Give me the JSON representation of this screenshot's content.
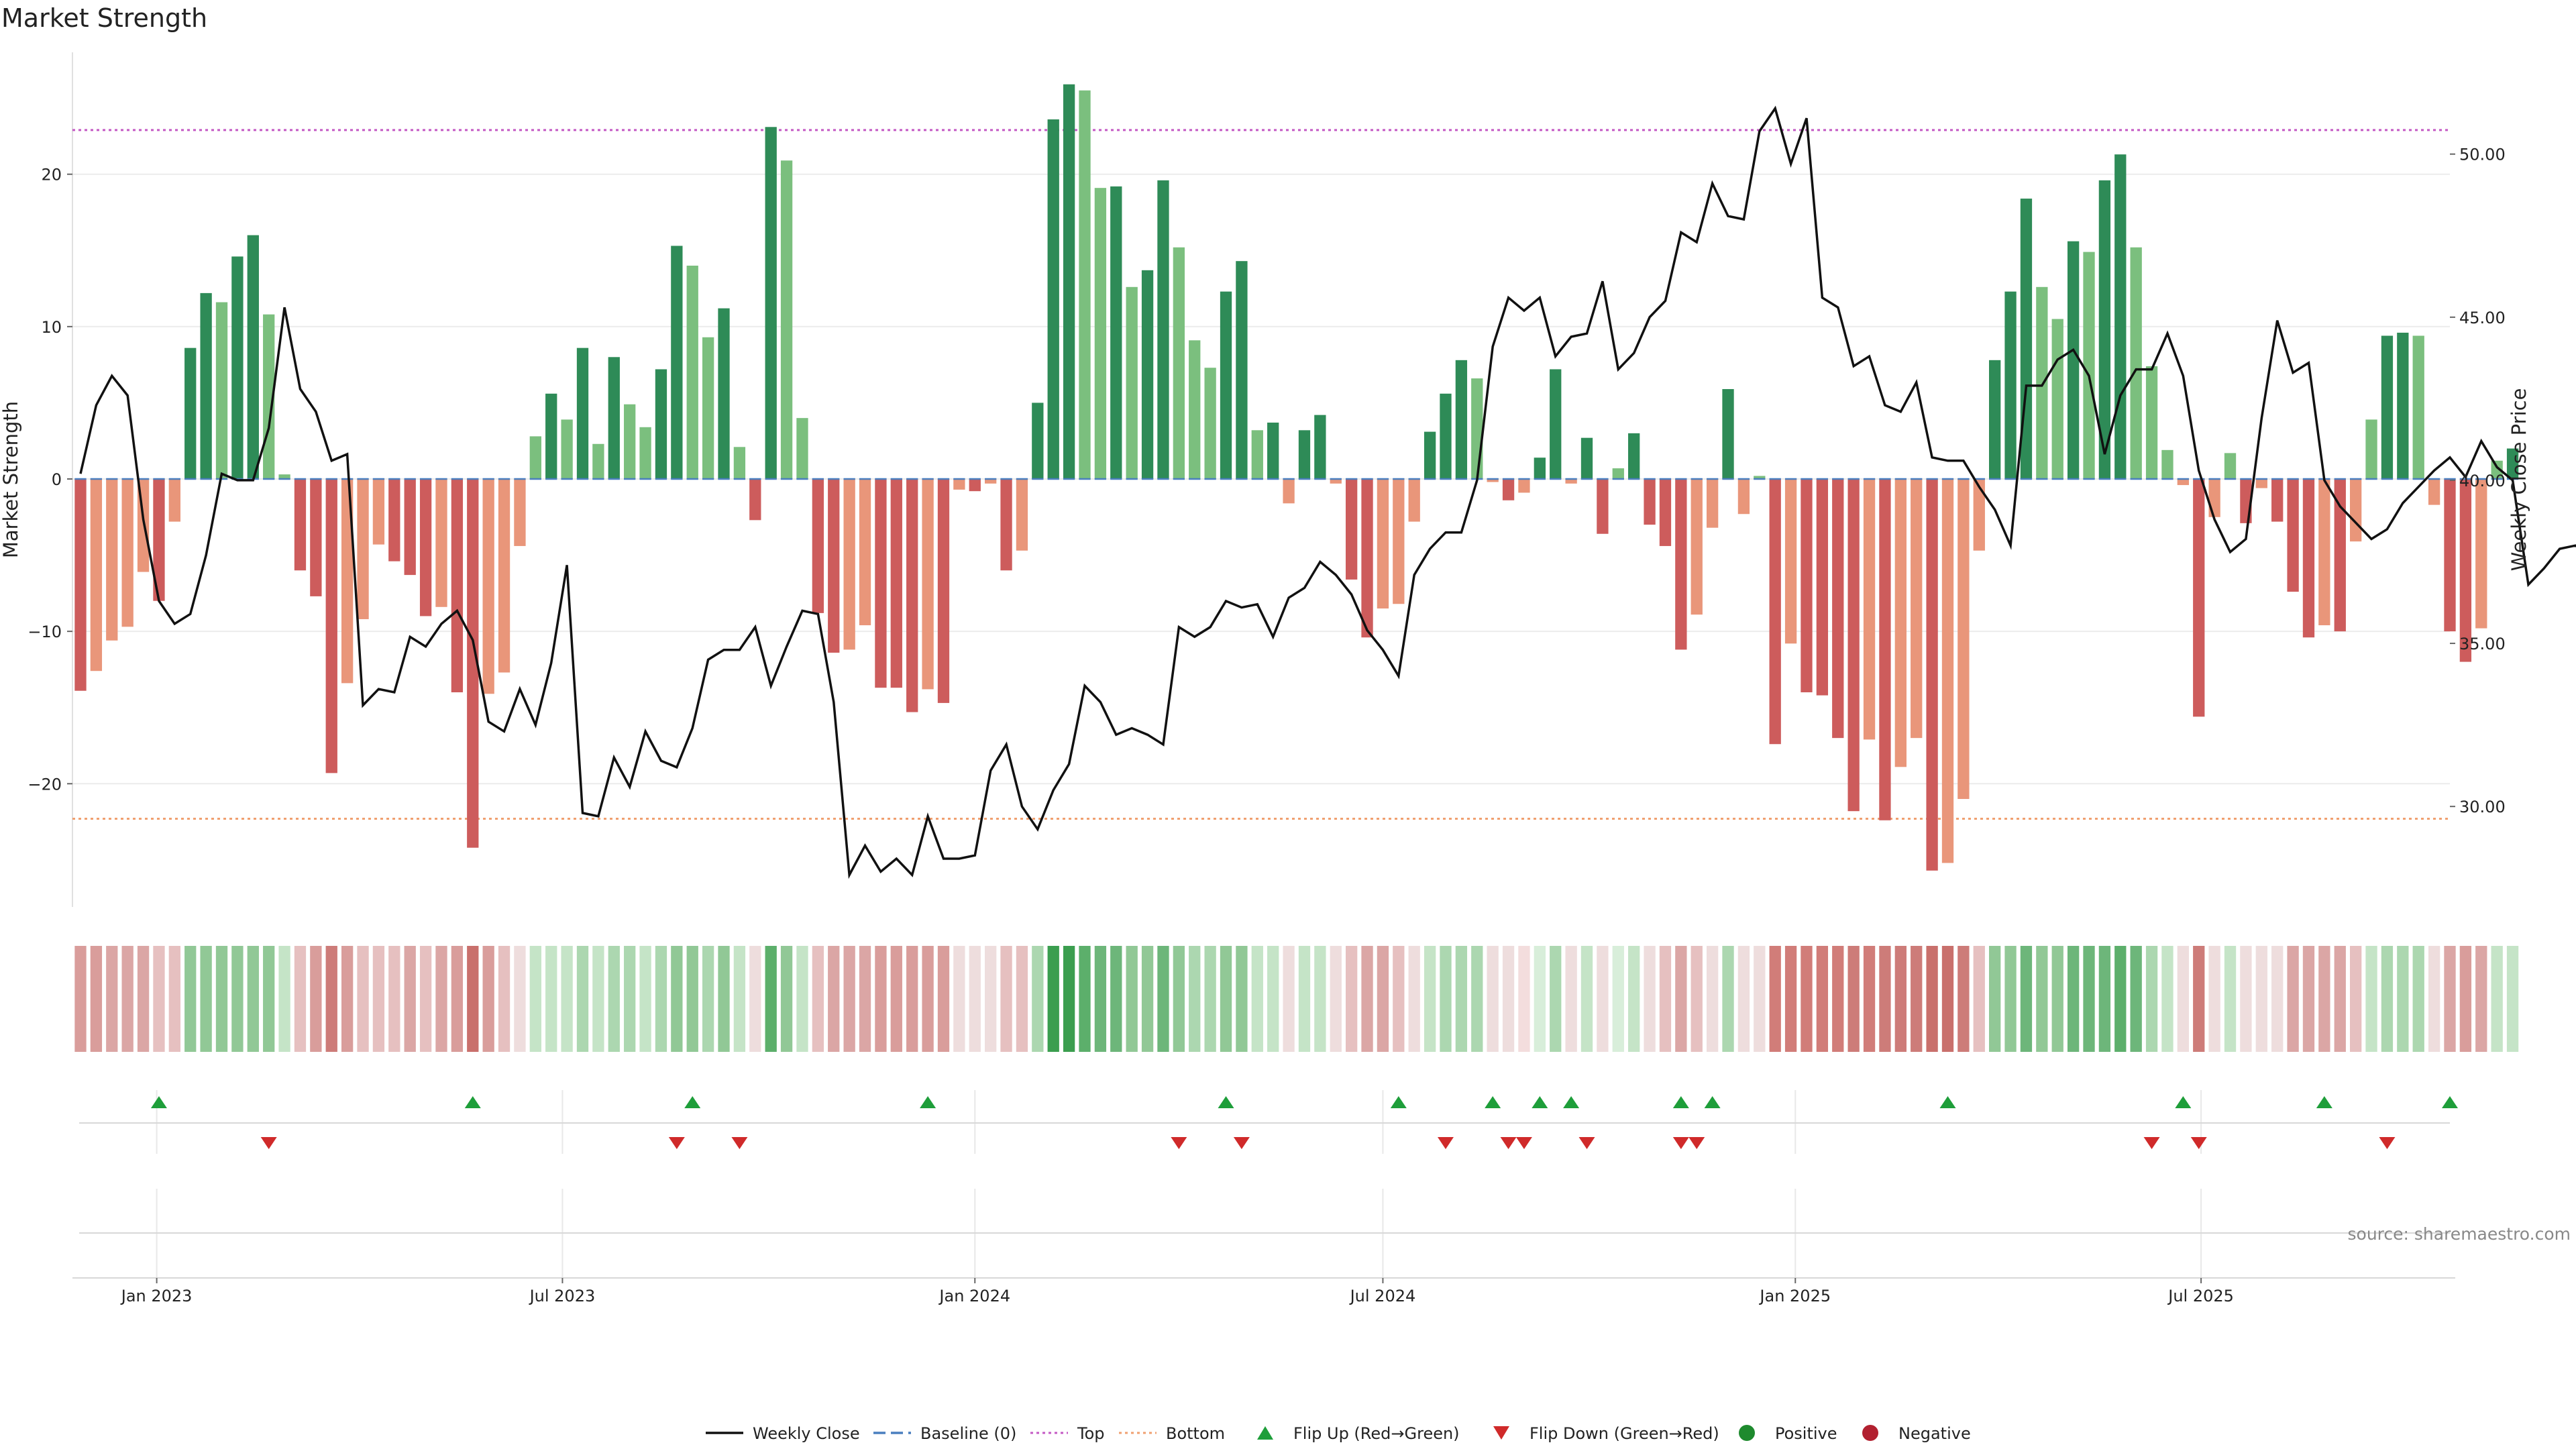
{
  "chart_data": {
    "type": "bar",
    "title": "Market Strength",
    "ylabel_left": "Market Strength",
    "ylabel_right": "Weekly Close Price",
    "source": "source: sharemaestro.com",
    "ylim_left": [
      -28,
      28
    ],
    "ylim_right": [
      26.96,
      53.12
    ],
    "yticks_left": [
      "20",
      "10",
      "0",
      "−10",
      "−20"
    ],
    "yticks_left_values": [
      20,
      10,
      0,
      -10,
      -20
    ],
    "yticks_right": [
      "50.00",
      "45.00",
      "40.00",
      "35.00",
      "30.00"
    ],
    "yticks_right_values": [
      50,
      45,
      40,
      35,
      30
    ],
    "x_start": "2022-11-28",
    "x_end": "2025-10-20",
    "x_ticks": [
      {
        "date": "2023-01-01",
        "label": "Jan 2023"
      },
      {
        "date": "2023-07-01",
        "label": "Jul 2023"
      },
      {
        "date": "2024-01-01",
        "label": "Jan 2024"
      },
      {
        "date": "2024-07-01",
        "label": "Jul 2024"
      },
      {
        "date": "2025-01-01",
        "label": "Jan 2025"
      },
      {
        "date": "2025-07-01",
        "label": "Jul 2025"
      }
    ],
    "reference_lines": {
      "top": 22.9,
      "bottom": -22.3,
      "baseline": 0
    },
    "market_strength": [
      -13.9,
      -12.6,
      -10.6,
      -9.7,
      -6.1,
      -8,
      -2.8,
      8.6,
      12.2,
      11.6,
      14.6,
      16,
      10.8,
      0.3,
      -6,
      -7.7,
      -19.3,
      -13.4,
      -9.2,
      -4.3,
      -5.4,
      -6.3,
      -9,
      -8.4,
      -14,
      -24.2,
      -14.1,
      -12.7,
      -4.4,
      2.8,
      5.6,
      3.9,
      8.6,
      2.3,
      8,
      4.9,
      3.4,
      7.2,
      15.3,
      14,
      9.3,
      11.2,
      2.1,
      -2.7,
      23.1,
      20.9,
      4,
      -8.8,
      -11.4,
      -11.2,
      -9.6,
      -13.7,
      -13.7,
      -15.3,
      -13.8,
      -14.7,
      -0.7,
      -0.8,
      -0.3,
      -6,
      -4.7,
      5,
      23.6,
      25.9,
      25.5,
      19.1,
      19.2,
      12.6,
      13.7,
      19.6,
      15.2,
      9.1,
      7.3,
      12.3,
      14.3,
      3.2,
      3.7,
      -1.6,
      3.2,
      4.2,
      -0.3,
      -6.6,
      -10.4,
      -8.5,
      -8.2,
      -2.8,
      3.1,
      5.6,
      7.8,
      6.6,
      -0.2,
      -1.4,
      -0.9,
      1.4,
      7.2,
      -0.3,
      2.7,
      -3.6,
      0.7,
      3,
      -3,
      -4.4,
      -11.2,
      -8.9,
      -3.2,
      5.9,
      -2.3,
      0.2,
      -17.4,
      -10.8,
      -14,
      -14.2,
      -17,
      -21.8,
      -17.1,
      -22.4,
      -18.9,
      -17,
      -25.7,
      -25.2,
      -21,
      -4.7,
      7.8,
      12.3,
      18.4,
      12.6,
      10.5,
      15.6,
      14.9,
      19.6,
      21.3,
      15.2,
      7.4,
      1.9,
      -0.4,
      -15.6,
      -2.5,
      1.7,
      -2.9,
      -0.6,
      -2.8,
      -7.4,
      -10.4,
      -9.6,
      -10,
      -4.1,
      3.9,
      9.4,
      9.6,
      9.4,
      -1.7,
      -10,
      -12,
      -9.8,
      1.2,
      2
    ],
    "weekly_close": [
      40.2,
      42.3,
      43.2,
      42.6,
      38.8,
      36.3,
      35.6,
      35.9,
      37.7,
      40.2,
      40,
      40,
      41.6,
      45.3,
      42.8,
      42.1,
      40.6,
      40.8,
      33.1,
      33.6,
      33.5,
      35.2,
      34.9,
      35.6,
      36,
      35.1,
      32.6,
      32.3,
      33.6,
      32.5,
      34.4,
      37.4,
      29.8,
      29.7,
      31.5,
      30.6,
      32.3,
      31.4,
      31.2,
      32.4,
      34.5,
      34.8,
      34.8,
      35.5,
      33.7,
      34.9,
      36,
      35.9,
      33.2,
      27.9,
      28.8,
      28,
      28.4,
      27.9,
      29.7,
      28.4,
      28.4,
      28.5,
      31.1,
      31.9,
      30,
      29.3,
      30.5,
      31.3,
      33.7,
      33.2,
      32.2,
      32.4,
      32.2,
      31.9,
      35.5,
      35.2,
      35.5,
      36.3,
      36.1,
      36.2,
      35.2,
      36.4,
      36.7,
      37.5,
      37.1,
      36.5,
      35.4,
      34.8,
      34,
      37.1,
      37.9,
      38.4,
      38.4,
      40,
      44.1,
      45.6,
      45.2,
      45.6,
      43.8,
      44.4,
      44.5,
      46.1,
      43.4,
      43.9,
      45,
      45.5,
      47.6,
      47.3,
      49.1,
      48.1,
      48,
      50.7,
      51.4,
      49.7,
      51.1,
      45.6,
      45.3,
      43.5,
      43.8,
      42.3,
      42.1,
      43,
      40.7,
      40.6,
      40.6,
      39.8,
      39.1,
      38,
      42.9,
      42.9,
      43.7,
      44,
      43.2,
      40.8,
      42.6,
      43.4,
      43.4,
      44.5,
      43.2,
      40.3,
      38.8,
      37.8,
      38.2,
      41.9,
      44.9,
      43.3,
      43.6,
      40,
      39.2,
      38.7,
      38.2,
      38.5,
      39.3,
      39.8,
      40.3,
      40.7,
      40.1,
      41.2,
      40.4,
      40,
      36.8,
      37.3,
      37.9,
      38,
      37.7
    ],
    "band_colors": [
      "#d99d9b",
      "#d99d9b",
      "#dba6a5",
      "#dba6a5",
      "#dba6a5",
      "#e6c0c0",
      "#e6c0c0",
      "#91c896",
      "#91c896",
      "#91c896",
      "#91c896",
      "#91c896",
      "#91c896",
      "#c5e4c7",
      "#e6c0c0",
      "#d99d9b",
      "#cd7c79",
      "#d99d9b",
      "#e6c0c0",
      "#e6c0c0",
      "#e6c0c0",
      "#dba6a5",
      "#e6c0c0",
      "#dba6a5",
      "#d99d9b",
      "#c9706c",
      "#d99d9b",
      "#e6c0c0",
      "#eedddd",
      "#c5e4c7",
      "#c5e4c7",
      "#c5e4c7",
      "#acd7b0",
      "#c5e4c7",
      "#acd7b0",
      "#acd7b0",
      "#c5e4c7",
      "#acd7b0",
      "#91c896",
      "#91c896",
      "#acd7b0",
      "#91c896",
      "#c5e4c7",
      "#eedddd",
      "#5caf6b",
      "#91c896",
      "#c5e4c7",
      "#e6c0c0",
      "#dba6a5",
      "#dba6a5",
      "#dba6a5",
      "#d99d9b",
      "#d99d9b",
      "#d99d9b",
      "#d99d9b",
      "#d99d9b",
      "#eedddd",
      "#eedddd",
      "#eedddd",
      "#e6c0c0",
      "#e6c0c0",
      "#acd7b0",
      "#3b9e4f",
      "#3b9e4f",
      "#5caf6b",
      "#6db67a",
      "#6db67a",
      "#91c896",
      "#91c896",
      "#6db67a",
      "#91c896",
      "#acd7b0",
      "#acd7b0",
      "#91c896",
      "#91c896",
      "#c5e4c7",
      "#c5e4c7",
      "#eedddd",
      "#c5e4c7",
      "#c5e4c7",
      "#eedddd",
      "#e6c0c0",
      "#dba6a5",
      "#dba6a5",
      "#e6c0c0",
      "#eedddd",
      "#c5e4c7",
      "#acd7b0",
      "#acd7b0",
      "#acd7b0",
      "#eedddd",
      "#eedddd",
      "#f3dddd",
      "#d8eeda",
      "#acd7b0",
      "#eedddd",
      "#c5e4c7",
      "#eedddd",
      "#d8eeda",
      "#c5e4c7",
      "#eedddd",
      "#e6c0c0",
      "#dba6a5",
      "#e6c0c0",
      "#eedddd",
      "#acd7b0",
      "#eedddd",
      "#eedddd",
      "#d17d79",
      "#d17d79",
      "#d17d79",
      "#d17d79",
      "#d17d79",
      "#cd7c79",
      "#d17d79",
      "#cd7c79",
      "#cd7c79",
      "#cd7c79",
      "#c9706c",
      "#c9706c",
      "#cd7c79",
      "#e6c0c0",
      "#91c896",
      "#91c896",
      "#6db67a",
      "#91c896",
      "#91c896",
      "#6db67a",
      "#6db67a",
      "#6db67a",
      "#5caf6b",
      "#6db67a",
      "#acd7b0",
      "#c5e4c7",
      "#eedddd",
      "#cd7c79",
      "#eedddd",
      "#c5e4c7",
      "#eedddd",
      "#eedddd",
      "#eedddd",
      "#dba6a5",
      "#dba6a5",
      "#dba6a5",
      "#dba6a5",
      "#e6c0c0",
      "#c5e4c7",
      "#acd7b0",
      "#acd7b0",
      "#acd7b0",
      "#eedddd",
      "#dba6a5",
      "#d99d9b",
      "#dba6a5",
      "#c5e4c7",
      "#c5e4c7"
    ],
    "flip_up_dates": [
      "2023-01-02",
      "2023-05-22",
      "2023-08-28",
      "2023-12-11",
      "2024-04-22",
      "2024-07-08",
      "2024-08-19",
      "2024-09-09",
      "2024-09-23",
      "2024-11-11",
      "2024-11-25",
      "2025-03-10",
      "2025-06-23",
      "2025-08-25",
      "2025-10-20"
    ],
    "flip_down_dates": [
      "2023-02-20",
      "2023-08-21",
      "2023-09-18",
      "2024-04-01",
      "2024-04-29",
      "2024-07-29",
      "2024-08-26",
      "2024-09-02",
      "2024-09-30",
      "2024-11-11",
      "2024-11-18",
      "2025-06-09",
      "2025-06-30",
      "2025-09-22"
    ],
    "colors": {
      "pos_strong": "#2e8b57",
      "pos_weak": "#7bbf7e",
      "neg_strong": "#cd5c5c",
      "neg_weak": "#e9967a",
      "price_line": "#111111",
      "baseline": "#4a7fbf",
      "top_line": "#c45ac4",
      "bottom_line": "#f0a070",
      "flip_up": "#1e9e3a",
      "flip_down": "#d02a2a",
      "positive": "#1e8a2e",
      "negative": "#b22030"
    },
    "legend_position": "bottom-center",
    "legend": [
      {
        "key": "weekly_close",
        "label": "Weekly Close",
        "marker": "line"
      },
      {
        "key": "baseline",
        "label": "Baseline (0)",
        "marker": "dash"
      },
      {
        "key": "top",
        "label": "Top",
        "marker": "dot"
      },
      {
        "key": "bottom",
        "label": "Bottom",
        "marker": "dot"
      },
      {
        "key": "flip_up",
        "label": "Flip Up (Red→Green)",
        "marker": "triangle-up"
      },
      {
        "key": "flip_down",
        "label": "Flip Down (Green→Red)",
        "marker": "triangle-down"
      },
      {
        "key": "positive",
        "label": "Positive",
        "marker": "circle"
      },
      {
        "key": "negative",
        "label": "Negative",
        "marker": "circle"
      }
    ]
  }
}
